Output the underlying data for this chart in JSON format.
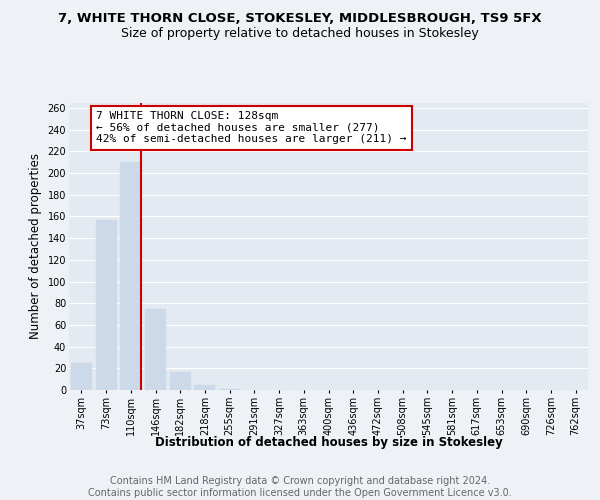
{
  "title_line1": "7, WHITE THORN CLOSE, STOKESLEY, MIDDLESBROUGH, TS9 5FX",
  "title_line2": "Size of property relative to detached houses in Stokesley",
  "xlabel": "Distribution of detached houses by size in Stokesley",
  "ylabel": "Number of detached properties",
  "footer": "Contains HM Land Registry data © Crown copyright and database right 2024.\nContains public sector information licensed under the Open Government Licence v3.0.",
  "bin_labels": [
    "37sqm",
    "73sqm",
    "110sqm",
    "146sqm",
    "182sqm",
    "218sqm",
    "255sqm",
    "291sqm",
    "327sqm",
    "363sqm",
    "400sqm",
    "436sqm",
    "472sqm",
    "508sqm",
    "545sqm",
    "581sqm",
    "617sqm",
    "653sqm",
    "690sqm",
    "726sqm",
    "762sqm"
  ],
  "bar_values": [
    25,
    157,
    210,
    75,
    17,
    5,
    1,
    0,
    0,
    0,
    0,
    0,
    0,
    0,
    0,
    0,
    0,
    0,
    0,
    0,
    0
  ],
  "bar_color": "#ccd9e8",
  "vline_x": 2.42,
  "vline_color": "#cc0000",
  "annotation_text": "7 WHITE THORN CLOSE: 128sqm\n← 56% of detached houses are smaller (277)\n42% of semi-detached houses are larger (211) →",
  "annotation_box_color": "#cc0000",
  "ylim": [
    0,
    265
  ],
  "yticks": [
    0,
    20,
    40,
    60,
    80,
    100,
    120,
    140,
    160,
    180,
    200,
    220,
    240,
    260
  ],
  "background_color": "#eef2f7",
  "plot_bg_color": "#e4eaf2",
  "grid_color": "#ffffff",
  "title_fontsize": 9.5,
  "subtitle_fontsize": 9,
  "axis_label_fontsize": 8.5,
  "tick_fontsize": 7,
  "footer_fontsize": 7,
  "annotation_fontsize": 8
}
